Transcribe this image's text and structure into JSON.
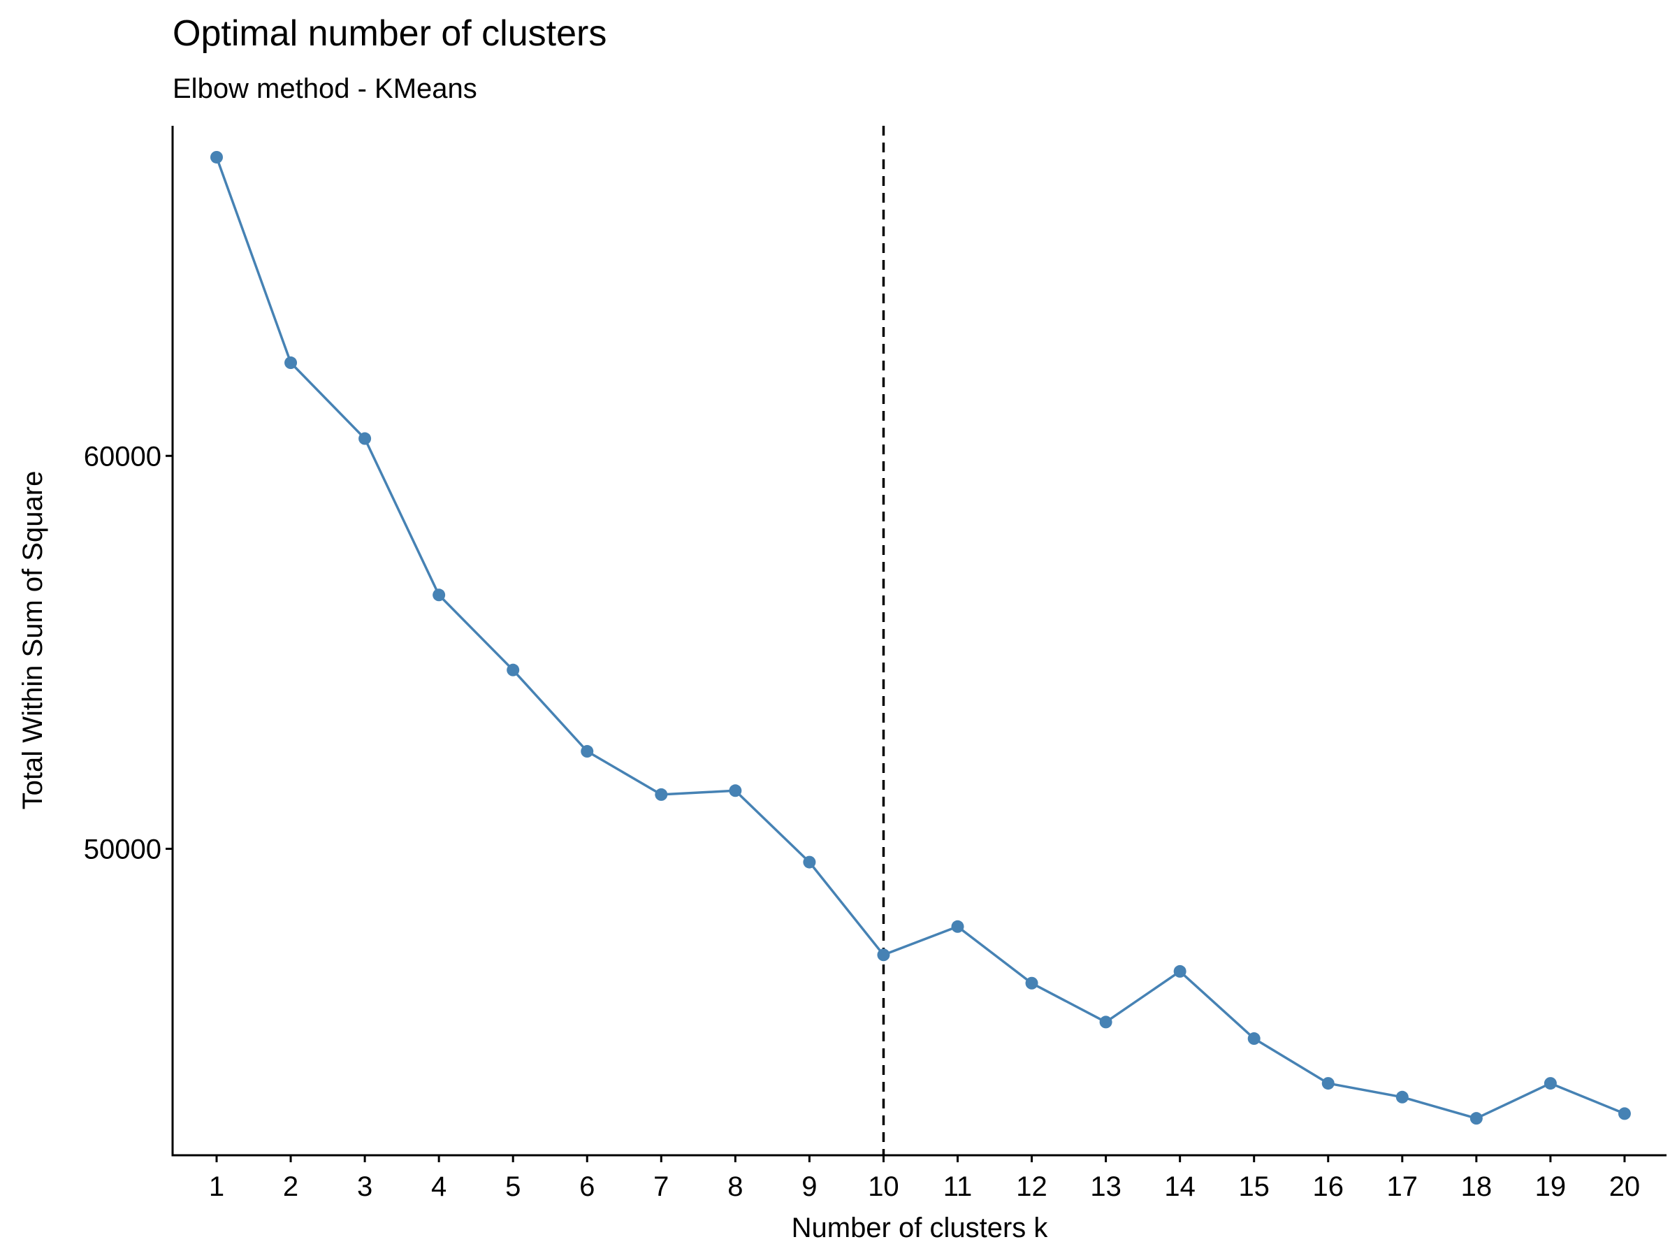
{
  "chart_data": {
    "type": "line",
    "title": "Optimal number of clusters",
    "subtitle": "Elbow method - KMeans",
    "xlabel": "Number of clusters k",
    "ylabel": "Total Within Sum of Square",
    "categories": [
      "1",
      "2",
      "3",
      "4",
      "5",
      "6",
      "7",
      "8",
      "9",
      "10",
      "11",
      "12",
      "13",
      "14",
      "15",
      "16",
      "17",
      "18",
      "19",
      "20"
    ],
    "series": [
      {
        "values": [
          67600,
          62370,
          60440,
          56460,
          54550,
          52480,
          51380,
          51480,
          49660,
          47300,
          48020,
          46580,
          45590,
          46880,
          45170,
          44030,
          43680,
          43140,
          44030,
          43260
        ],
        "color": "#4682B4"
      }
    ],
    "ylim": [
      42200,
      68400
    ],
    "yticks": [
      "50000",
      "60000"
    ],
    "yticks_values": [
      50000,
      60000
    ],
    "vline": {
      "x": "10",
      "style": "dashed",
      "color": "#000000"
    },
    "grid": false,
    "legend": "none"
  }
}
